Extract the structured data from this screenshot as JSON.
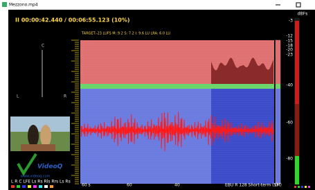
{
  "window": {
    "title": "Mezzono.mp4"
  },
  "player": {
    "time": "II 00:00:42.440 / 00:06:55.123 (10%)"
  },
  "stats": "TARGET:-23 LUFS   M:  9.2 S:  7.2    I:  9.6 LU     LRA:  6.0 LU",
  "meter": {
    "unit": "dBFs",
    "labels": [
      "-3",
      "-12",
      "-15",
      "-18",
      "-20",
      "-23",
      "-40",
      "-60",
      "-80"
    ]
  },
  "graph": {
    "x_labels": [
      "60 s",
      "60",
      "40"
    ],
    "caption": "EBU R 128 Short-term (S)",
    "m_label": "(M)"
  },
  "scope": {
    "labels": [
      "C",
      "L",
      "R"
    ]
  },
  "logo": {
    "name": "VideoQ",
    "url": "www.videoq.com"
  },
  "channels": "L  R  C  LFE Ls Rs Rls Rrs Ls Rs"
}
